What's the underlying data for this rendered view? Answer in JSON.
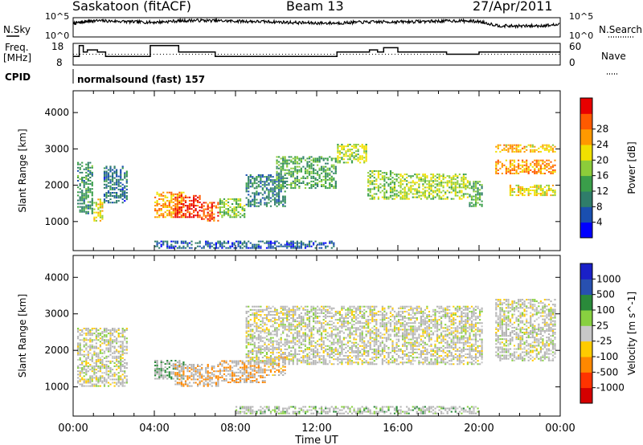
{
  "header": {
    "station": "Saskatoon (fitACF)",
    "beam": "Beam 13",
    "date": "27/Apr/2011"
  },
  "noise_panel": {
    "left_label": "N.Sky",
    "right_label": "N.Search",
    "y_ticks": [
      "10^5",
      "10^0"
    ],
    "y_ticks_right": [
      "10^5",
      "10^0"
    ]
  },
  "freq_panel": {
    "left_label_1": "Freq.",
    "left_label_2": "[MHz]",
    "left_ticks": [
      "18",
      "8"
    ],
    "right_label": "Nave",
    "right_ticks": [
      "60",
      "0"
    ],
    "cpid_label": "CPID",
    "cpid_value": "normalsound (fast) 157"
  },
  "colors": {
    "power_scale": [
      "#0000ff",
      "#1a4fb0",
      "#2f7d6a",
      "#3a9e4a",
      "#8ccc3a",
      "#f0e000",
      "#ff9900",
      "#ff5a00",
      "#e80000"
    ],
    "velocity_scale": [
      "#d40000",
      "#ff3300",
      "#ff8800",
      "#ffcc00",
      "#c8c8c8",
      "#88d040",
      "#2a8a3a",
      "#2850b0",
      "#1a20c8"
    ],
    "ground_scatter": "#b4b4b4"
  },
  "chart_data": [
    {
      "type": "line",
      "name": "noise",
      "xlabel": "",
      "ylabel": "",
      "x_range_hours": [
        0,
        24
      ],
      "series": [
        {
          "name": "N.Sky",
          "x": [
            0,
            0.5,
            1,
            2,
            3,
            4,
            5,
            6,
            7,
            8,
            9,
            10,
            11,
            12,
            13,
            14,
            15,
            16,
            17,
            18,
            19,
            20,
            21,
            22,
            23,
            24
          ],
          "y_log10": [
            3.5,
            3.9,
            4.2,
            4.1,
            3.9,
            3.8,
            4.1,
            4.3,
            4.2,
            4.1,
            4.0,
            3.9,
            3.7,
            3.6,
            3.6,
            3.8,
            3.9,
            3.9,
            4.0,
            4.1,
            4.2,
            4.0,
            2.9,
            2.8,
            2.9,
            3.2
          ]
        }
      ]
    },
    {
      "type": "line",
      "name": "frequency",
      "x_range_hours": [
        0,
        24
      ],
      "ylim_left": [
        8,
        18
      ],
      "ylim_right": [
        0,
        60
      ],
      "series": [
        {
          "name": "Freq",
          "x": [
            0,
            0.3,
            0.5,
            0.7,
            1.2,
            1.6,
            2.6,
            3.8,
            4.0,
            5.2,
            6.0,
            7.0,
            8.2,
            9.0,
            11.0,
            13.0,
            14.0,
            14.6,
            15.0,
            15.3,
            16.0,
            17.0,
            18.4,
            20.0,
            24.0
          ],
          "y": [
            12,
            17,
            14,
            15,
            14,
            12,
            12,
            17,
            17,
            14,
            14,
            12,
            12,
            12,
            12,
            14,
            14,
            15,
            14,
            16,
            14,
            14,
            13,
            14,
            14
          ]
        },
        {
          "name": "Nave",
          "x": [
            0,
            24
          ],
          "y": [
            30,
            30
          ]
        }
      ]
    },
    {
      "type": "heatmap",
      "name": "power",
      "title": "",
      "xlabel": "Time UT",
      "ylabel": "Slant Range [km]",
      "x_ticks": [
        "00:00",
        "04:00",
        "08:00",
        "12:00",
        "16:00",
        "20:00",
        "00:00"
      ],
      "x_range_hours": [
        0,
        24
      ],
      "ylim": [
        200,
        4600
      ],
      "y_ticks": [
        1000,
        2000,
        3000,
        4000
      ],
      "colorbar_label": "Power [dB]",
      "colorbar_ticks": [
        4,
        8,
        12,
        16,
        20,
        24,
        28
      ],
      "colorbar_range": [
        0,
        30
      ],
      "regions": [
        {
          "t": [
            0.2,
            1.0
          ],
          "r": [
            1200,
            2600
          ],
          "v": 10
        },
        {
          "t": [
            1.0,
            1.5
          ],
          "r": [
            1000,
            1600
          ],
          "v": 18
        },
        {
          "t": [
            1.5,
            2.7
          ],
          "r": [
            1500,
            2500
          ],
          "v": 7
        },
        {
          "t": [
            4.0,
            5.5
          ],
          "r": [
            1100,
            1800
          ],
          "v": 22
        },
        {
          "t": [
            5.0,
            6.3
          ],
          "r": [
            1100,
            1700
          ],
          "v": 27
        },
        {
          "t": [
            6.3,
            7.2
          ],
          "r": [
            1000,
            1500
          ],
          "v": 25
        },
        {
          "t": [
            7.2,
            8.5
          ],
          "r": [
            1100,
            1600
          ],
          "v": 14
        },
        {
          "t": [
            8.5,
            10.5
          ],
          "r": [
            1400,
            2300
          ],
          "v": 8
        },
        {
          "t": [
            10.0,
            13.0
          ],
          "r": [
            1900,
            2800
          ],
          "v": 12
        },
        {
          "t": [
            13.0,
            14.5
          ],
          "r": [
            2600,
            3100
          ],
          "v": 16
        },
        {
          "t": [
            14.5,
            16.0
          ],
          "r": [
            1600,
            2400
          ],
          "v": 14
        },
        {
          "t": [
            16.0,
            19.5
          ],
          "r": [
            1600,
            2300
          ],
          "v": 16
        },
        {
          "t": [
            19.5,
            20.2
          ],
          "r": [
            1400,
            2100
          ],
          "v": 12
        },
        {
          "t": [
            20.8,
            23.8
          ],
          "r": [
            2900,
            3100
          ],
          "v": 20
        },
        {
          "t": [
            20.8,
            23.8
          ],
          "r": [
            2300,
            2700
          ],
          "v": 22
        },
        {
          "t": [
            21.5,
            23.8
          ],
          "r": [
            1700,
            2000
          ],
          "v": 18
        },
        {
          "t": [
            4.0,
            13.0
          ],
          "r": [
            250,
            450
          ],
          "v": 6
        }
      ]
    },
    {
      "type": "heatmap",
      "name": "velocity",
      "xlabel": "Time UT",
      "ylabel": "Slant Range [km]",
      "x_ticks": [
        "00:00",
        "04:00",
        "08:00",
        "12:00",
        "16:00",
        "20:00",
        "00:00"
      ],
      "x_range_hours": [
        0,
        24
      ],
      "ylim": [
        200,
        4600
      ],
      "y_ticks": [
        1000,
        2000,
        3000,
        4000
      ],
      "colorbar_label": "Velocity [m s^-1]",
      "colorbar_ticks": [
        "1000",
        "500",
        "100",
        "25",
        "-25",
        "-100",
        "-500",
        "-1000"
      ],
      "regions": [
        {
          "t": [
            0.2,
            2.7
          ],
          "r": [
            1000,
            2600
          ],
          "v": 0
        },
        {
          "t": [
            4.0,
            5.5
          ],
          "r": [
            1200,
            1700
          ],
          "v": 300
        },
        {
          "t": [
            5.0,
            7.2
          ],
          "r": [
            1000,
            1600
          ],
          "v": -400
        },
        {
          "t": [
            7.2,
            9.5
          ],
          "r": [
            1100,
            1700
          ],
          "v": -300
        },
        {
          "t": [
            9.5,
            10.5
          ],
          "r": [
            1300,
            1800
          ],
          "v": -150
        },
        {
          "t": [
            8.5,
            20.2
          ],
          "r": [
            1600,
            3200
          ],
          "v": 0
        },
        {
          "t": [
            20.8,
            23.8
          ],
          "r": [
            1700,
            3400
          ],
          "v": 0
        },
        {
          "t": [
            8.0,
            20.0
          ],
          "r": [
            250,
            450
          ],
          "v": 60
        }
      ]
    }
  ]
}
